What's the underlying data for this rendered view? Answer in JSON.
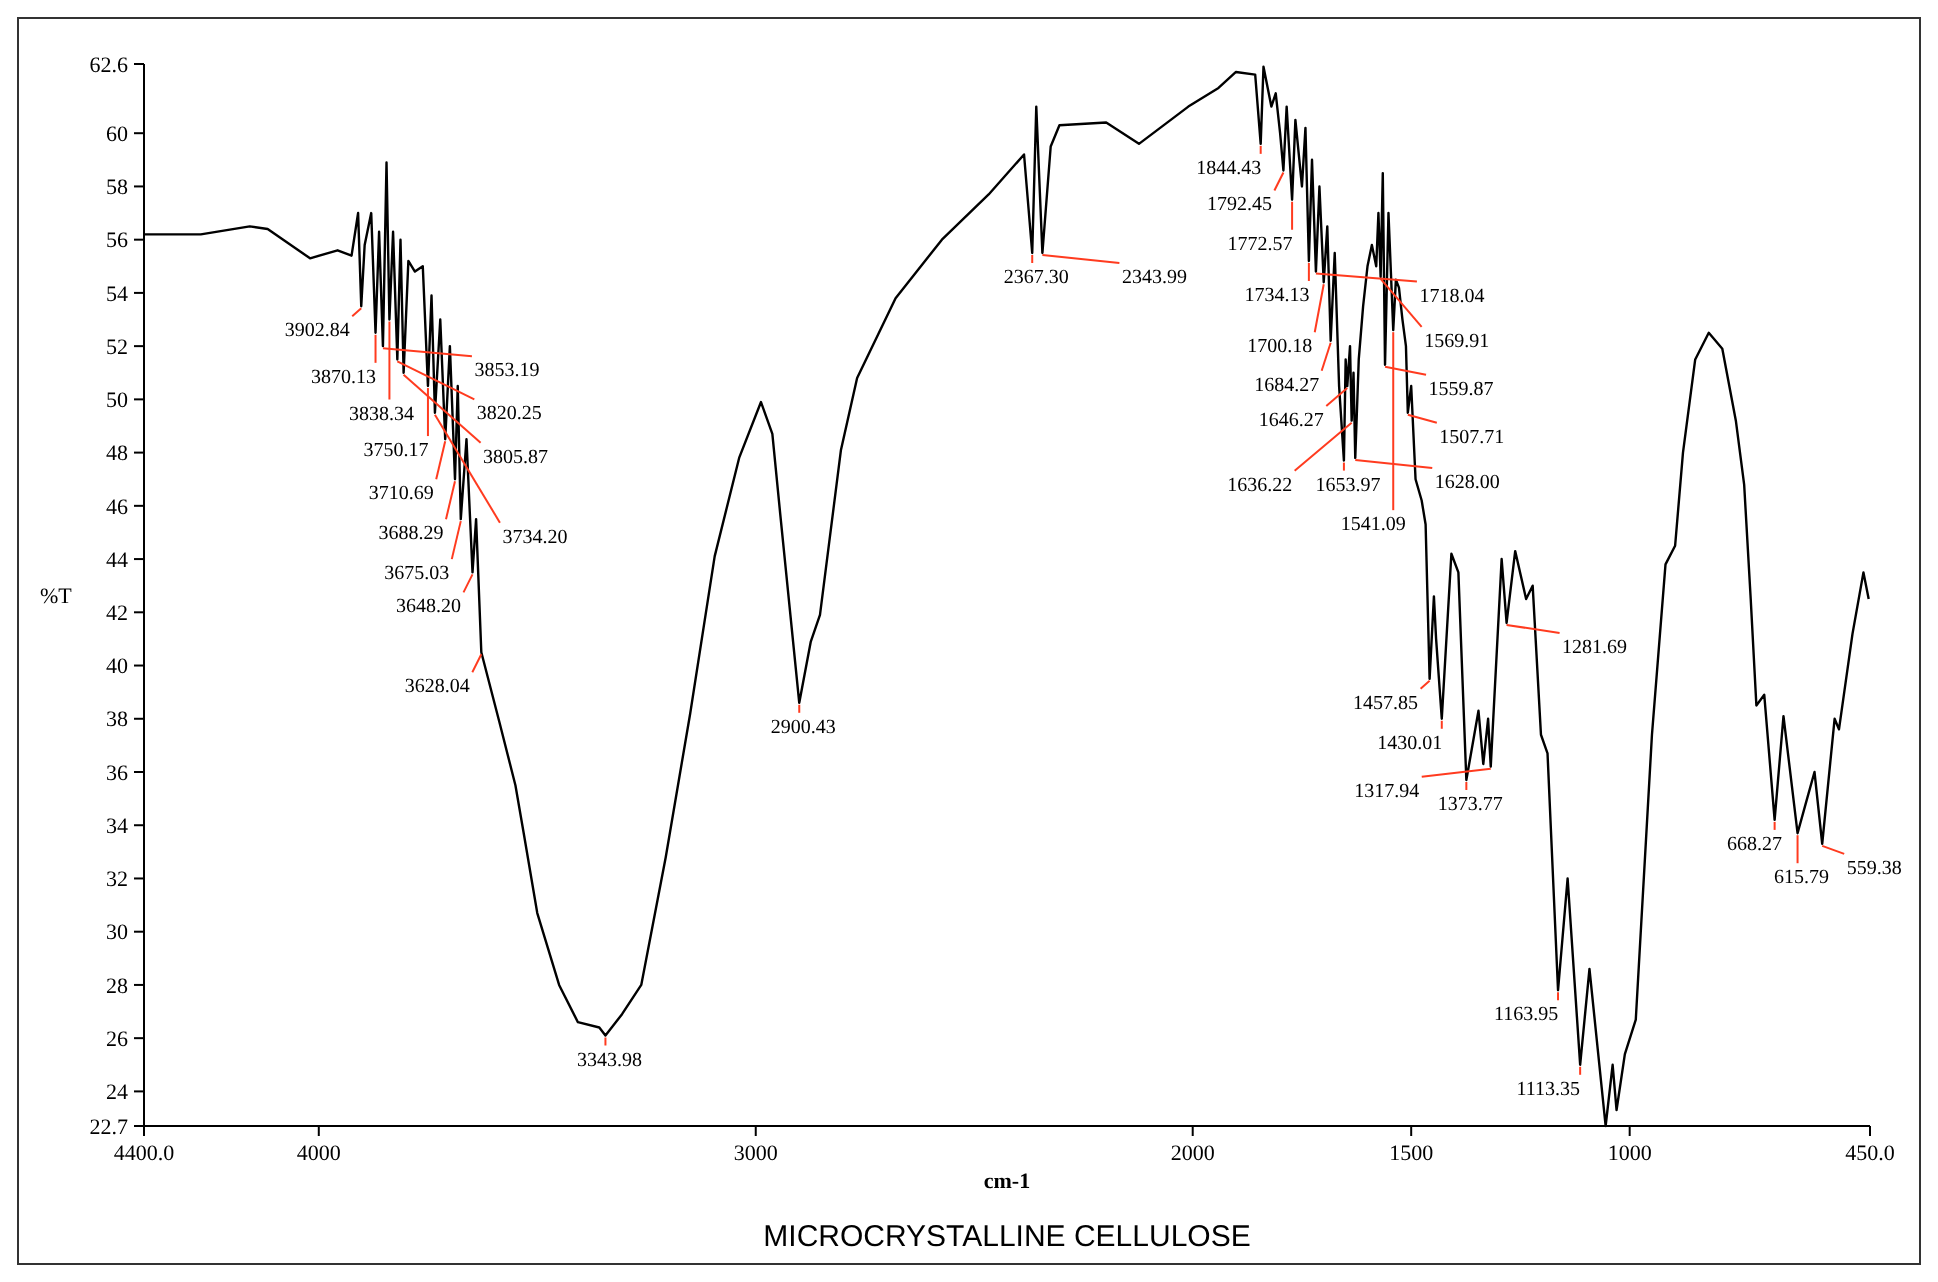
{
  "chart_data": {
    "type": "line",
    "title": "MICROCRYSTALLINE CELLULOSE",
    "xlabel": "cm-1",
    "ylabel": "%T",
    "xlim": [
      4400,
      450
    ],
    "ylim": [
      22.7,
      62.6
    ],
    "xticks": [
      {
        "value": 4400,
        "label": "4400.0"
      },
      4000,
      3000,
      2000,
      1500,
      1000,
      {
        "value": 450,
        "label": "450.0"
      }
    ],
    "yticks": [
      22.7,
      24,
      26,
      28,
      30,
      32,
      34,
      36,
      38,
      40,
      42,
      44,
      46,
      48,
      50,
      52,
      54,
      56,
      58,
      60,
      62.6
    ],
    "grid": false,
    "marker": "none",
    "line_style": "solid",
    "series": [
      {
        "color": "#000000",
        "x": [
          4400,
          4270,
          4158,
          4117,
          4020,
          3957,
          3925,
          3910,
          3902.84,
          3895,
          3880,
          3870.13,
          3862,
          3853.19,
          3845,
          3838.34,
          3830,
          3820.25,
          3813,
          3805.87,
          3795,
          3780,
          3762,
          3750.17,
          3742,
          3734.2,
          3722,
          3710.69,
          3700,
          3688.29,
          3682,
          3675.03,
          3662,
          3648.2,
          3640,
          3628.04,
          3587,
          3550,
          3531,
          3500,
          3450,
          3407,
          3358,
          3343.98,
          3306,
          3262,
          3206,
          3150,
          3094,
          3038,
          2988,
          2962,
          2944,
          2900.43,
          2874,
          2853,
          2805,
          2768,
          2680,
          2574,
          2467,
          2386,
          2367.3,
          2358,
          2343.99,
          2325,
          2305,
          2198,
          2123,
          2010,
          1941,
          1901,
          1857,
          1844.43,
          1838,
          1820,
          1810,
          1800,
          1792.45,
          1785,
          1772.57,
          1765,
          1750,
          1742,
          1734.13,
          1727,
          1718.04,
          1710,
          1700.18,
          1692,
          1684.27,
          1675,
          1665,
          1653.97,
          1650,
          1646.27,
          1640,
          1636.22,
          1632,
          1628,
          1620,
          1610,
          1600,
          1590,
          1580,
          1575,
          1569.91,
          1565,
          1559.87,
          1552,
          1547,
          1541.09,
          1535,
          1528,
          1520,
          1512,
          1507.71,
          1500,
          1490,
          1476,
          1467,
          1457.85,
          1448,
          1443,
          1430.01,
          1408,
          1392,
          1373.77,
          1346,
          1335,
          1324,
          1317.94,
          1293,
          1281.69,
          1262,
          1237,
          1222,
          1203,
          1188,
          1163.95,
          1142,
          1113.35,
          1092,
          1055,
          1039,
          1030,
          1011,
          986,
          949,
          918,
          896,
          878,
          850,
          819,
          788,
          757,
          738,
          723,
          710,
          692,
          668.27,
          648,
          615.79,
          599,
          577,
          559.38,
          531,
          521,
          490,
          465,
          453
        ],
        "values": [
          56.2,
          56.2,
          56.5,
          56.4,
          55.3,
          55.6,
          55.4,
          57.0,
          53.5,
          55.8,
          57.0,
          52.5,
          56.3,
          52.0,
          58.9,
          53.0,
          56.3,
          51.5,
          56.0,
          51.0,
          55.2,
          54.8,
          55.0,
          50.5,
          53.9,
          49.5,
          53.0,
          48.5,
          52.0,
          47.0,
          50.5,
          45.5,
          48.5,
          43.5,
          45.5,
          40.5,
          37.9,
          35.5,
          33.7,
          30.7,
          28.0,
          26.6,
          26.4,
          26.1,
          26.9,
          28.0,
          32.8,
          38.2,
          44.1,
          47.8,
          49.9,
          48.7,
          45.7,
          38.6,
          40.9,
          41.9,
          48.1,
          50.8,
          53.8,
          56.0,
          57.7,
          59.2,
          55.5,
          61.0,
          55.5,
          59.5,
          60.3,
          60.4,
          59.6,
          61.0,
          61.7,
          62.3,
          62.2,
          59.6,
          62.5,
          61.0,
          61.5,
          60.0,
          58.6,
          61.0,
          57.5,
          60.5,
          58.0,
          60.2,
          55.2,
          59.0,
          54.8,
          58.0,
          54.4,
          56.5,
          52.2,
          55.5,
          50.5,
          47.7,
          51.5,
          50.5,
          52.0,
          49.2,
          51.0,
          47.8,
          51.5,
          53.5,
          55.0,
          55.8,
          55.0,
          57.0,
          54.6,
          58.5,
          51.3,
          57.0,
          55.0,
          52.6,
          54.5,
          54.2,
          53.0,
          52.0,
          49.5,
          50.5,
          47.0,
          46.2,
          45.3,
          39.5,
          42.6,
          41.0,
          38.0,
          44.2,
          43.5,
          35.7,
          38.3,
          36.3,
          38.0,
          36.2,
          44.0,
          41.6,
          44.3,
          42.5,
          43.0,
          37.4,
          36.7,
          27.8,
          32.0,
          25.0,
          28.6,
          22.7,
          25.0,
          23.3,
          25.4,
          26.7,
          37.4,
          43.8,
          44.5,
          48.0,
          51.5,
          52.5,
          51.9,
          49.2,
          46.8,
          42.5,
          38.5,
          38.9,
          34.2,
          38.1,
          33.7,
          34.7,
          36.0,
          33.3,
          38.0,
          37.6,
          41.2,
          43.5,
          42.5
        ]
      }
    ],
    "annotations": [
      {
        "text": "3902.84",
        "x": 3902.84,
        "y": 53.5
      },
      {
        "text": "3870.13",
        "x": 3870.13,
        "y": 52.5
      },
      {
        "text": "3853.19",
        "x": 3853.19,
        "y": 52.0
      },
      {
        "text": "3838.34",
        "x": 3838.34,
        "y": 53.0
      },
      {
        "text": "3820.25",
        "x": 3820.25,
        "y": 51.5
      },
      {
        "text": "3805.87",
        "x": 3805.87,
        "y": 51.0
      },
      {
        "text": "3750.17",
        "x": 3750.17,
        "y": 50.5
      },
      {
        "text": "3734.20",
        "x": 3734.2,
        "y": 49.5
      },
      {
        "text": "3710.69",
        "x": 3710.69,
        "y": 48.5
      },
      {
        "text": "3688.29",
        "x": 3688.29,
        "y": 47.0
      },
      {
        "text": "3675.03",
        "x": 3675.03,
        "y": 45.5
      },
      {
        "text": "3648.20",
        "x": 3648.2,
        "y": 43.5
      },
      {
        "text": "3628.04",
        "x": 3628.04,
        "y": 40.5
      },
      {
        "text": "3343.98",
        "x": 3343.98,
        "y": 26.1
      },
      {
        "text": "2900.43",
        "x": 2900.43,
        "y": 38.6
      },
      {
        "text": "2367.30",
        "x": 2367.3,
        "y": 55.5
      },
      {
        "text": "2343.99",
        "x": 2343.99,
        "y": 55.5
      },
      {
        "text": "1844.43",
        "x": 1844.43,
        "y": 59.6
      },
      {
        "text": "1792.45",
        "x": 1792.45,
        "y": 58.6
      },
      {
        "text": "1772.57",
        "x": 1772.57,
        "y": 57.5
      },
      {
        "text": "1734.13",
        "x": 1734.13,
        "y": 55.2
      },
      {
        "text": "1718.04",
        "x": 1718.04,
        "y": 54.8
      },
      {
        "text": "1700.18",
        "x": 1700.18,
        "y": 54.4
      },
      {
        "text": "1684.27",
        "x": 1684.27,
        "y": 52.2
      },
      {
        "text": "1653.97",
        "x": 1653.97,
        "y": 47.7
      },
      {
        "text": "1646.27",
        "x": 1646.27,
        "y": 50.5
      },
      {
        "text": "1636.22",
        "x": 1636.22,
        "y": 49.2
      },
      {
        "text": "1628.00",
        "x": 1628,
        "y": 47.8
      },
      {
        "text": "1569.91",
        "x": 1569.91,
        "y": 54.6
      },
      {
        "text": "1559.87",
        "x": 1559.87,
        "y": 51.3
      },
      {
        "text": "1541.09",
        "x": 1541.09,
        "y": 52.6
      },
      {
        "text": "1507.71",
        "x": 1507.71,
        "y": 49.5
      },
      {
        "text": "1457.85",
        "x": 1457.85,
        "y": 39.5
      },
      {
        "text": "1430.01",
        "x": 1430.01,
        "y": 38.0
      },
      {
        "text": "1373.77",
        "x": 1373.77,
        "y": 35.7
      },
      {
        "text": "1317.94",
        "x": 1317.94,
        "y": 36.2
      },
      {
        "text": "1281.69",
        "x": 1281.69,
        "y": 41.6
      },
      {
        "text": "1163.95",
        "x": 1163.95,
        "y": 27.8
      },
      {
        "text": "1113.35",
        "x": 1113.35,
        "y": 25.0
      },
      {
        "text": "668.27",
        "x": 668.27,
        "y": 34.2
      },
      {
        "text": "615.79",
        "x": 615.79,
        "y": 33.7
      },
      {
        "text": "559.38",
        "x": 559.38,
        "y": 33.3
      }
    ]
  }
}
